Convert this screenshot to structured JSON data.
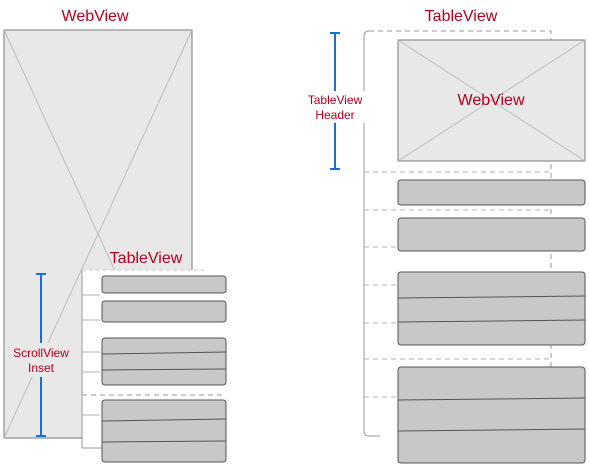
{
  "left_diagram": {
    "webview_title": "WebView",
    "tableview_title": "TableView",
    "inset_label_line1": "ScrollView",
    "inset_label_line2": "Inset"
  },
  "right_diagram": {
    "tableview_title": "TableView",
    "header_label_line1": "TableView",
    "header_label_line2": "Header",
    "webview_label": "WebView"
  },
  "colors": {
    "label_red": "#b0001e",
    "bracket_blue": "#1a6fd0",
    "placeholder_fill": "#e8e8e8",
    "cell_fill": "#c8c8c8",
    "outline": "#555555",
    "dashed": "#9a9a9a"
  }
}
